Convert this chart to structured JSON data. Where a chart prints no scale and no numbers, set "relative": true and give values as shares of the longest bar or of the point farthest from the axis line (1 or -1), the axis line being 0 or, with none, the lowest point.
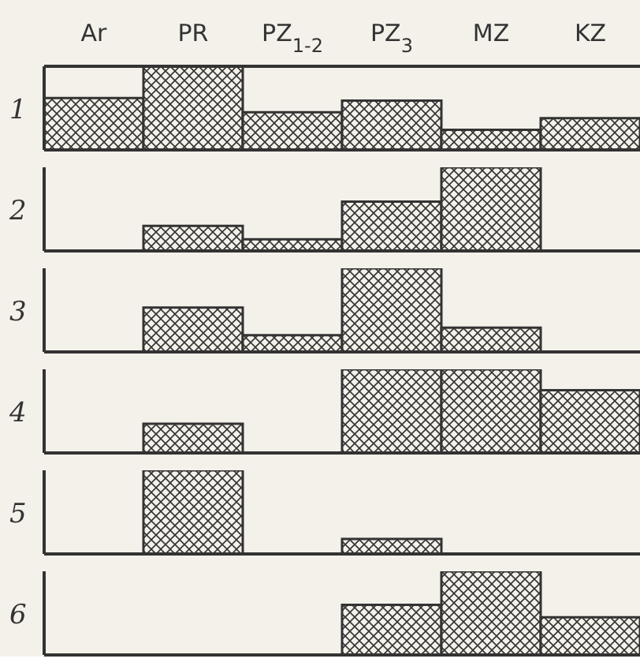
{
  "chart_data": [
    {
      "type": "bar",
      "title": "1",
      "relative": true,
      "tick_labels": "x",
      "categories": [
        "Ar",
        "PR",
        "PZ$_{1-2}$",
        "PZ$_{3}$",
        "MZ",
        "KZ"
      ],
      "color": "#333333",
      "values": [
        0.62,
        1,
        0.45,
        0.59,
        0.24,
        0.38
      ]
    },
    {
      "type": "bar",
      "title": "2",
      "relative": true,
      "tick_labels": false,
      "categories": [
        null,
        null,
        null,
        null,
        null,
        null
      ],
      "color": "#333333",
      "values": [
        0,
        0.3,
        0.14,
        0.59,
        1,
        0
      ]
    },
    {
      "type": "bar",
      "title": "3",
      "relative": true,
      "tick_labels": false,
      "categories": [
        null,
        null,
        null,
        null,
        null,
        null
      ],
      "color": "#333333",
      "values": [
        0,
        0.53,
        0.2,
        1,
        0.29,
        0
      ]
    },
    {
      "type": "bar",
      "title": "4",
      "relative": true,
      "tick_labels": false,
      "categories": [
        null,
        null,
        null,
        null,
        null,
        null
      ],
      "color": "#333333",
      "values": [
        0,
        0.35,
        0,
        1,
        1,
        0.75
      ]
    },
    {
      "type": "bar",
      "title": "5",
      "relative": true,
      "tick_labels": false,
      "categories": [
        null,
        null,
        null,
        null,
        null,
        null
      ],
      "color": "#333333",
      "values": [
        0,
        1,
        0,
        0.18,
        0,
        0
      ]
    },
    {
      "type": "bar",
      "title": "6",
      "relative": true,
      "tick_labels": false,
      "categories": [
        null,
        null,
        null,
        null,
        null,
        null
      ],
      "color": "#333333",
      "values": [
        0,
        0,
        0,
        0.6,
        1,
        0.45
      ]
    }
  ]
}
